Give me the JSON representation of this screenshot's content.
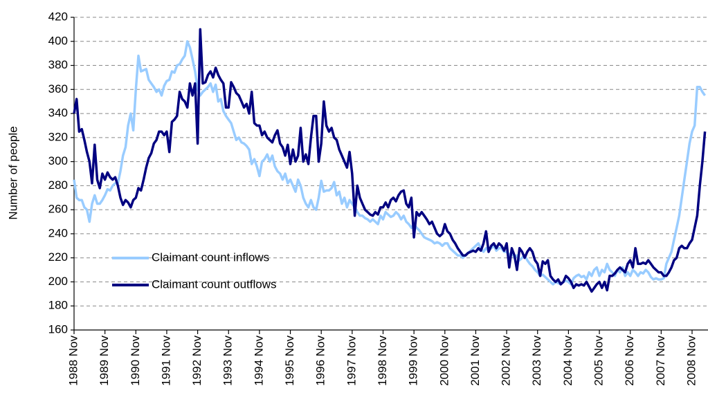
{
  "chart_data": {
    "type": "line",
    "y_label": "Number of people",
    "ylim": [
      160,
      420
    ],
    "yticks": [
      160,
      180,
      200,
      220,
      240,
      260,
      280,
      300,
      320,
      340,
      360,
      380,
      400,
      420
    ],
    "grid": true,
    "legend": "center left",
    "categories": [
      "1988 Nov",
      null,
      null,
      null,
      null,
      null,
      null,
      null,
      null,
      null,
      null,
      null,
      "1989 Nov",
      null,
      null,
      null,
      null,
      null,
      null,
      null,
      null,
      null,
      null,
      null,
      "1990 Nov",
      null,
      null,
      null,
      null,
      null,
      null,
      null,
      null,
      null,
      null,
      null,
      "1991 Nov",
      null,
      null,
      null,
      null,
      null,
      null,
      null,
      null,
      null,
      null,
      null,
      "1992 Nov",
      null,
      null,
      null,
      null,
      null,
      null,
      null,
      null,
      null,
      null,
      null,
      "1993 Nov",
      null,
      null,
      null,
      null,
      null,
      null,
      null,
      null,
      null,
      null,
      null,
      "1994 Nov",
      null,
      null,
      null,
      null,
      null,
      null,
      null,
      null,
      null,
      null,
      null,
      "1995 Nov",
      null,
      null,
      null,
      null,
      null,
      null,
      null,
      null,
      null,
      null,
      null,
      "1996 Nov",
      null,
      null,
      null,
      null,
      null,
      null,
      null,
      null,
      null,
      null,
      null,
      "1997 Nov",
      null,
      null,
      null,
      null,
      null,
      null,
      null,
      null,
      null,
      null,
      null,
      "1998 Nov",
      null,
      null,
      null,
      null,
      null,
      null,
      null,
      null,
      null,
      null,
      null,
      "1999 Nov",
      null,
      null,
      null,
      null,
      null,
      null,
      null,
      null,
      null,
      null,
      null,
      "2000 Nov",
      null,
      null,
      null,
      null,
      null,
      null,
      null,
      null,
      null,
      null,
      null,
      "2001 Nov",
      null,
      null,
      null,
      null,
      null,
      null,
      null,
      null,
      null,
      null,
      null,
      "2002 Nov",
      null,
      null,
      null,
      null,
      null,
      null,
      null,
      null,
      null,
      null,
      null,
      "2003 Nov",
      null,
      null,
      null,
      null,
      null,
      null,
      null,
      null,
      null,
      null,
      null,
      "2004 Nov",
      null,
      null,
      null,
      null,
      null,
      null,
      null,
      null,
      null,
      null,
      null,
      "2005 Nov",
      null,
      null,
      null,
      null,
      null,
      null,
      null,
      null,
      null,
      null,
      null,
      "2006 Nov",
      null,
      null,
      null,
      null,
      null,
      null,
      null,
      null,
      null,
      null,
      null,
      "2007 Nov",
      null,
      null,
      null,
      null,
      null,
      null,
      null,
      null,
      null,
      null,
      null,
      "2008 Nov",
      null,
      null,
      null,
      null,
      null
    ],
    "series": [
      {
        "name": "Claimant count inflows",
        "color": "#99ccff",
        "values": [
          285,
          270,
          268,
          268,
          262,
          260,
          250,
          265,
          272,
          265,
          265,
          268,
          272,
          277,
          276,
          280,
          282,
          282,
          292,
          305,
          312,
          330,
          340,
          326,
          360,
          388,
          375,
          376,
          377,
          368,
          365,
          362,
          358,
          360,
          355,
          363,
          367,
          368,
          375,
          374,
          380,
          381,
          385,
          388,
          400,
          395,
          385,
          375,
          360,
          355,
          358,
          360,
          362,
          365,
          358,
          364,
          350,
          352,
          342,
          338,
          335,
          332,
          325,
          318,
          320,
          316,
          315,
          313,
          310,
          298,
          302,
          296,
          288,
          300,
          302,
          306,
          300,
          305,
          296,
          292,
          290,
          285,
          290,
          282,
          285,
          280,
          275,
          285,
          280,
          270,
          265,
          262,
          268,
          262,
          260,
          270,
          284,
          275,
          276,
          276,
          278,
          283,
          272,
          275,
          265,
          270,
          262,
          268,
          265,
          262,
          258,
          255,
          255,
          253,
          252,
          250,
          252,
          250,
          248,
          255,
          252,
          258,
          256,
          254,
          255,
          258,
          256,
          252,
          255,
          250,
          248,
          245,
          248,
          245,
          243,
          240,
          237,
          236,
          235,
          234,
          232,
          233,
          232,
          230,
          232,
          232,
          228,
          226,
          224,
          222,
          222,
          220,
          222,
          224,
          226,
          228,
          230,
          232,
          228,
          225,
          228,
          226,
          228,
          230,
          226,
          228,
          228,
          225,
          225,
          222,
          225,
          220,
          222,
          218,
          220,
          222,
          218,
          215,
          213,
          210,
          208,
          205,
          206,
          204,
          202,
          200,
          198,
          200,
          199,
          198,
          200,
          201,
          200,
          198,
          203,
          205,
          206,
          204,
          205,
          202,
          208,
          205,
          210,
          212,
          205,
          210,
          208,
          215,
          210,
          208,
          205,
          210,
          208,
          212,
          205,
          208,
          205,
          210,
          208,
          205,
          208,
          207,
          210,
          208,
          204,
          202,
          203,
          202,
          202,
          203,
          215,
          220,
          225,
          235,
          245,
          255,
          270,
          285,
          300,
          315,
          325,
          330,
          362,
          362,
          358,
          355
        ]
      },
      {
        "name": "Claimant count outflows",
        "color": "#000080",
        "values": [
          340,
          352,
          325,
          327,
          318,
          308,
          300,
          282,
          314,
          285,
          278,
          290,
          285,
          291,
          287,
          285,
          287,
          280,
          270,
          264,
          268,
          266,
          262,
          268,
          270,
          278,
          276,
          285,
          295,
          303,
          307,
          315,
          318,
          325,
          325,
          322,
          325,
          308,
          333,
          335,
          338,
          358,
          352,
          350,
          345,
          365,
          355,
          365,
          315,
          410,
          365,
          366,
          372,
          375,
          370,
          378,
          372,
          368,
          365,
          345,
          345,
          366,
          362,
          357,
          355,
          350,
          345,
          348,
          340,
          358,
          332,
          330,
          330,
          322,
          325,
          320,
          318,
          316,
          322,
          326,
          315,
          312,
          305,
          314,
          298,
          310,
          300,
          305,
          328,
          300,
          306,
          298,
          320,
          338,
          338,
          300,
          315,
          350,
          330,
          325,
          328,
          320,
          318,
          310,
          305,
          300,
          295,
          308,
          290,
          255,
          280,
          270,
          265,
          260,
          258,
          256,
          255,
          258,
          256,
          262,
          262,
          266,
          262,
          268,
          270,
          267,
          272,
          275,
          276,
          265,
          262,
          270,
          237,
          258,
          255,
          258,
          255,
          252,
          248,
          250,
          245,
          240,
          238,
          240,
          248,
          242,
          240,
          235,
          232,
          228,
          225,
          222,
          222,
          224,
          225,
          226,
          225,
          228,
          226,
          232,
          242,
          225,
          230,
          232,
          228,
          232,
          230,
          226,
          232,
          212,
          228,
          222,
          210,
          228,
          225,
          220,
          225,
          228,
          225,
          218,
          215,
          205,
          217,
          215,
          218,
          205,
          202,
          200,
          202,
          198,
          200,
          205,
          203,
          200,
          195,
          198,
          197,
          198,
          197,
          200,
          196,
          192,
          195,
          198,
          200,
          195,
          200,
          193,
          205,
          205,
          207,
          210,
          212,
          210,
          208,
          215,
          218,
          212,
          228,
          215,
          215,
          216,
          215,
          218,
          215,
          212,
          210,
          208,
          208,
          205,
          205,
          208,
          212,
          218,
          220,
          228,
          230,
          228,
          228,
          232,
          235,
          245,
          255,
          280,
          300,
          325
        ]
      }
    ]
  }
}
